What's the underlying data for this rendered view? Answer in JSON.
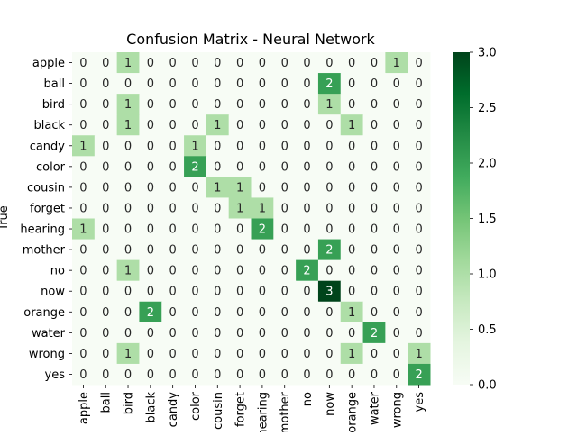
{
  "chart_data": {
    "type": "heatmap",
    "title": "Confusion Matrix - Neural Network",
    "ylabel": "True",
    "xlabel": "",
    "labels": [
      "apple",
      "ball",
      "bird",
      "black",
      "candy",
      "color",
      "cousin",
      "forget",
      "hearing",
      "mother",
      "no",
      "now",
      "orange",
      "water",
      "wrong",
      "yes"
    ],
    "values": [
      [
        0,
        0,
        1,
        0,
        0,
        0,
        0,
        0,
        0,
        0,
        0,
        0,
        0,
        0,
        1,
        0
      ],
      [
        0,
        0,
        0,
        0,
        0,
        0,
        0,
        0,
        0,
        0,
        0,
        2,
        0,
        0,
        0,
        0
      ],
      [
        0,
        0,
        1,
        0,
        0,
        0,
        0,
        0,
        0,
        0,
        0,
        1,
        0,
        0,
        0,
        0
      ],
      [
        0,
        0,
        1,
        0,
        0,
        0,
        1,
        0,
        0,
        0,
        0,
        0,
        1,
        0,
        0,
        0
      ],
      [
        1,
        0,
        0,
        0,
        0,
        1,
        0,
        0,
        0,
        0,
        0,
        0,
        0,
        0,
        0,
        0
      ],
      [
        0,
        0,
        0,
        0,
        0,
        2,
        0,
        0,
        0,
        0,
        0,
        0,
        0,
        0,
        0,
        0
      ],
      [
        0,
        0,
        0,
        0,
        0,
        0,
        1,
        1,
        0,
        0,
        0,
        0,
        0,
        0,
        0,
        0
      ],
      [
        0,
        0,
        0,
        0,
        0,
        0,
        0,
        1,
        1,
        0,
        0,
        0,
        0,
        0,
        0,
        0
      ],
      [
        1,
        0,
        0,
        0,
        0,
        0,
        0,
        0,
        2,
        0,
        0,
        0,
        0,
        0,
        0,
        0
      ],
      [
        0,
        0,
        0,
        0,
        0,
        0,
        0,
        0,
        0,
        0,
        0,
        2,
        0,
        0,
        0,
        0
      ],
      [
        0,
        0,
        1,
        0,
        0,
        0,
        0,
        0,
        0,
        0,
        2,
        0,
        0,
        0,
        0,
        0
      ],
      [
        0,
        0,
        0,
        0,
        0,
        0,
        0,
        0,
        0,
        0,
        0,
        3,
        0,
        0,
        0,
        0
      ],
      [
        0,
        0,
        0,
        2,
        0,
        0,
        0,
        0,
        0,
        0,
        0,
        0,
        1,
        0,
        0,
        0
      ],
      [
        0,
        0,
        0,
        0,
        0,
        0,
        0,
        0,
        0,
        0,
        0,
        0,
        0,
        2,
        0,
        0
      ],
      [
        0,
        0,
        1,
        0,
        0,
        0,
        0,
        0,
        0,
        0,
        0,
        0,
        1,
        0,
        0,
        1
      ],
      [
        0,
        0,
        0,
        0,
        0,
        0,
        0,
        0,
        0,
        0,
        0,
        0,
        0,
        0,
        0,
        2
      ]
    ],
    "vmin": 0,
    "vmax": 3,
    "colormap": "Greens",
    "colors": [
      "#f7fcf5",
      "#e5f5e0",
      "#c7e9c0",
      "#a1d99b",
      "#74c476",
      "#41ab5d",
      "#238b45",
      "#006d2c",
      "#00441b"
    ],
    "colorbar_ticks": [
      "0.0",
      "0.5",
      "1.0",
      "1.5",
      "2.0",
      "2.5",
      "3.0"
    ]
  }
}
